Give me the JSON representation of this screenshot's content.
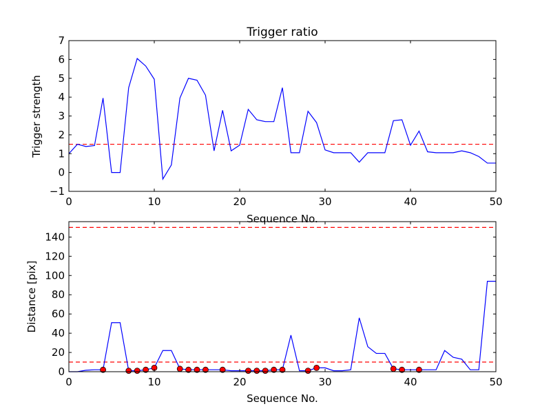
{
  "chart_data": [
    {
      "type": "line",
      "title": "Trigger ratio",
      "xlabel": "Sequence No.",
      "ylabel": "Trigger strength",
      "xlim": [
        0,
        50
      ],
      "ylim": [
        -1,
        7
      ],
      "xticks": [
        "0",
        "10",
        "20",
        "30",
        "40",
        "50"
      ],
      "yticks": [
        "−1",
        "0",
        "1",
        "2",
        "3",
        "4",
        "5",
        "6",
        "7"
      ],
      "grid": false,
      "colors": {
        "line": "#0000ff",
        "threshold": "#ff0000"
      },
      "thresholds": [
        1.5
      ],
      "x": [
        0,
        1,
        2,
        3,
        4,
        5,
        6,
        7,
        8,
        9,
        10,
        11,
        12,
        13,
        14,
        15,
        16,
        17,
        18,
        19,
        20,
        21,
        22,
        23,
        24,
        25,
        26,
        27,
        28,
        29,
        30,
        31,
        32,
        33,
        34,
        35,
        36,
        37,
        38,
        39,
        40,
        41,
        42,
        43,
        44,
        45,
        46,
        47,
        48,
        49,
        50
      ],
      "series": [
        {
          "values": [
            1.0,
            1.5,
            1.38,
            1.43,
            3.95,
            0.0,
            0.0,
            4.5,
            6.05,
            5.65,
            4.95,
            -0.35,
            0.4,
            3.95,
            5.0,
            4.9,
            4.1,
            1.15,
            3.3,
            1.15,
            1.45,
            3.35,
            2.8,
            2.7,
            2.7,
            4.5,
            1.05,
            1.05,
            3.25,
            2.65,
            1.2,
            1.05,
            1.05,
            1.05,
            0.55,
            1.05,
            1.05,
            1.05,
            2.75,
            2.8,
            1.45,
            2.2,
            1.1,
            1.05,
            1.05,
            1.05,
            1.15,
            1.05,
            0.85,
            0.5,
            0.5
          ]
        }
      ]
    },
    {
      "type": "line",
      "title": "",
      "xlabel": "Sequence No.",
      "ylabel": "Distance [pix]",
      "xlim": [
        0,
        50
      ],
      "ylim": [
        0,
        156
      ],
      "xticks": [
        "0",
        "10",
        "20",
        "30",
        "40",
        "50"
      ],
      "yticks": [
        "0",
        "20",
        "40",
        "60",
        "80",
        "100",
        "120",
        "140"
      ],
      "grid": false,
      "colors": {
        "line": "#0000ff",
        "threshold": "#ff0000",
        "marker": "#ff0000"
      },
      "thresholds": [
        10,
        150
      ],
      "x": [
        0,
        1,
        2,
        3,
        4,
        5,
        6,
        7,
        8,
        9,
        10,
        11,
        12,
        13,
        14,
        15,
        16,
        17,
        18,
        19,
        20,
        21,
        22,
        23,
        24,
        25,
        26,
        27,
        28,
        29,
        30,
        31,
        32,
        33,
        34,
        35,
        36,
        37,
        38,
        39,
        40,
        41,
        42,
        43,
        44,
        45,
        46,
        47,
        48,
        49,
        50
      ],
      "series": [
        {
          "values": [
            0,
            0,
            1.5,
            2,
            2,
            51,
            51,
            1,
            1,
            2,
            4,
            22,
            22,
            3,
            2,
            2,
            2,
            2,
            2,
            1,
            1,
            1,
            1,
            1,
            2,
            2,
            38,
            1,
            1,
            4,
            4,
            1,
            1,
            2,
            56,
            26,
            19,
            19,
            3,
            2,
            2,
            2,
            2,
            2,
            22,
            15,
            13,
            2,
            2,
            94,
            94
          ]
        }
      ],
      "markers": {
        "x": [
          4,
          7,
          8,
          9,
          10,
          13,
          14,
          15,
          16,
          18,
          21,
          22,
          23,
          24,
          25,
          28,
          29,
          38,
          39,
          41
        ],
        "y": [
          2,
          1,
          1,
          2,
          4,
          3,
          2,
          2,
          2,
          2,
          1,
          1,
          1,
          2,
          2,
          1,
          4,
          3,
          2,
          2
        ]
      }
    }
  ]
}
